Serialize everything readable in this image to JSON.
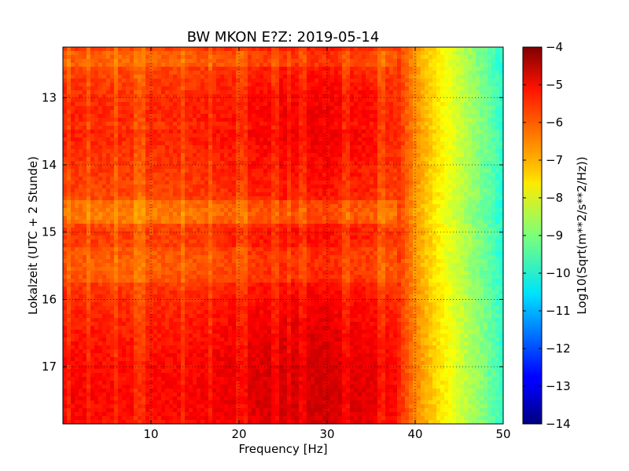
{
  "chart_data": {
    "type": "heatmap",
    "title": "BW MKON E?Z: 2019-05-14",
    "xlabel": "Frequency [Hz]",
    "ylabel": "Lokalzeit (UTC + 2 Stunde)",
    "colorbar_label": "Log10(Sqrt(m**2/s**2/Hz))",
    "xlim": [
      0,
      50
    ],
    "ylim": [
      12.25,
      17.85
    ],
    "y_inverted": true,
    "clim": [
      -14,
      -4
    ],
    "colormap": "jet",
    "grid": true,
    "x_ticks": [
      10,
      20,
      30,
      40,
      50
    ],
    "x_tick_labels": [
      "10",
      "20",
      "30",
      "40",
      "50"
    ],
    "y_ticks": [
      13,
      14,
      15,
      16,
      17
    ],
    "y_tick_labels": [
      "13",
      "14",
      "15",
      "16",
      "17"
    ],
    "colorbar_ticks": [
      -4,
      -5,
      -6,
      -7,
      -8,
      -9,
      -10,
      -11,
      -12,
      -13,
      -14
    ],
    "colorbar_tick_labels": [
      "−4",
      "−5",
      "−6",
      "−7",
      "−8",
      "−9",
      "−10",
      "−11",
      "−12",
      "−13",
      "−14"
    ],
    "frequency_profile": {
      "frequency_hz": [
        0,
        5,
        10,
        15,
        20,
        25,
        30,
        35,
        38,
        40,
        42,
        44,
        46,
        48,
        50
      ],
      "log_amplitude": [
        -5.5,
        -5.6,
        -5.6,
        -5.5,
        -5.3,
        -5.1,
        -5.1,
        -5.3,
        -5.6,
        -6.6,
        -7.3,
        -7.9,
        -8.5,
        -9.1,
        -9.8
      ]
    },
    "time_profile": {
      "time_h": [
        12.25,
        12.5,
        13.0,
        13.5,
        14.0,
        14.5,
        14.75,
        15.0,
        15.5,
        16.0,
        16.5,
        17.0,
        17.5,
        17.85
      ],
      "offset": [
        -0.35,
        -0.4,
        -0.1,
        0.0,
        -0.2,
        -0.35,
        -0.55,
        -0.25,
        -0.35,
        -0.1,
        0.1,
        0.25,
        0.3,
        0.2
      ]
    },
    "narrowband_lines_hz": [
      0.8,
      3.0,
      5.9,
      8.5,
      9.3,
      13.6,
      16.6,
      19.9,
      20.5,
      24.1,
      25.5,
      27.2,
      32.1,
      36.0,
      36.5,
      43.9
    ],
    "noise_bands_h": [
      {
        "start": 12.3,
        "end": 12.55,
        "offset": -0.5
      },
      {
        "start": 13.35,
        "end": 13.5,
        "offset": -0.25
      },
      {
        "start": 14.55,
        "end": 14.85,
        "offset": -0.7
      },
      {
        "start": 15.2,
        "end": 15.75,
        "offset": -0.45
      }
    ]
  }
}
